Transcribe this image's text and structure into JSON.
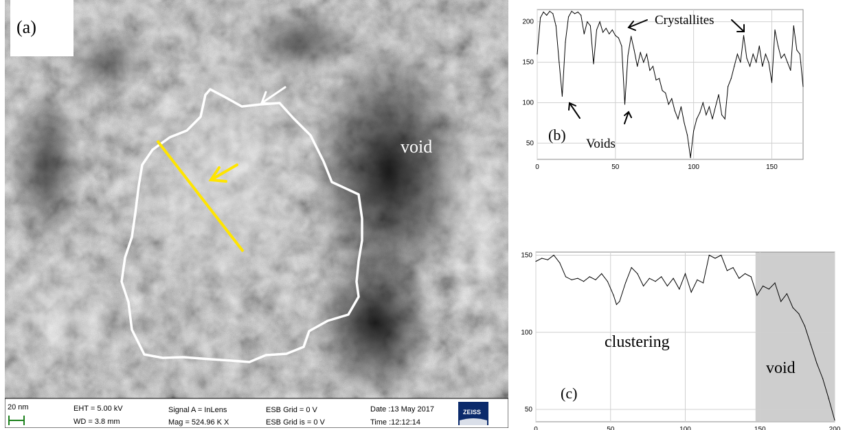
{
  "panel_a": {
    "label": "(a)",
    "void_label": "void",
    "info_bar": {
      "scale": "20 nm",
      "eht": "EHT =  5.00 kV",
      "wd": "WD =  3.8 mm",
      "signal": "Signal A = InLens",
      "mag": "Mag =  524.96 K X",
      "esb_grid": "ESB Grid =      0 V",
      "esb_grid_is": "ESB Grid is =     0 V",
      "date": "Date :13 May 2017",
      "time": "Time :12:12:14",
      "logo": "ZEISS"
    }
  },
  "chart_data": [
    {
      "type": "line",
      "panel": "(b)",
      "xlim": [
        0,
        170
      ],
      "ylim": [
        30,
        215
      ],
      "xticks": [
        0,
        50,
        100,
        150
      ],
      "yticks": [
        50,
        100,
        150,
        200
      ],
      "annotations": [
        "Crystallites",
        "Voids"
      ],
      "x": [
        0,
        2,
        4,
        6,
        8,
        10,
        12,
        14,
        16,
        18,
        20,
        22,
        24,
        26,
        28,
        30,
        32,
        34,
        36,
        38,
        40,
        42,
        44,
        46,
        48,
        50,
        52,
        54,
        56,
        58,
        60,
        62,
        64,
        66,
        68,
        70,
        72,
        74,
        76,
        78,
        80,
        82,
        84,
        86,
        88,
        90,
        92,
        94,
        96,
        98,
        100,
        102,
        104,
        106,
        108,
        110,
        112,
        114,
        116,
        118,
        120,
        122,
        124,
        126,
        128,
        130,
        132,
        134,
        136,
        138,
        140,
        142,
        144,
        146,
        148,
        150,
        152,
        154,
        156,
        158,
        160,
        162,
        164,
        166,
        168,
        170
      ],
      "values": [
        160,
        205,
        212,
        208,
        213,
        210,
        195,
        150,
        108,
        175,
        206,
        213,
        210,
        212,
        208,
        185,
        200,
        195,
        148,
        190,
        200,
        187,
        192,
        185,
        190,
        183,
        180,
        170,
        98,
        158,
        182,
        165,
        145,
        162,
        150,
        160,
        140,
        145,
        128,
        130,
        115,
        112,
        98,
        105,
        90,
        80,
        95,
        75,
        60,
        32,
        65,
        80,
        88,
        100,
        85,
        95,
        80,
        95,
        110,
        85,
        80,
        120,
        130,
        145,
        160,
        150,
        183,
        155,
        145,
        160,
        150,
        170,
        145,
        160,
        150,
        125,
        190,
        170,
        155,
        160,
        150,
        140,
        195,
        165,
        160,
        120
      ]
    },
    {
      "type": "line",
      "panel": "(c)",
      "xlim": [
        0,
        200
      ],
      "ylim": [
        42,
        152
      ],
      "xticks": [
        0,
        50,
        100,
        150,
        200
      ],
      "yticks": [
        50,
        100,
        150
      ],
      "annotations": [
        "clustering",
        "void"
      ],
      "x": [
        0,
        4,
        8,
        12,
        16,
        20,
        24,
        28,
        32,
        36,
        40,
        44,
        48,
        52,
        54,
        56,
        60,
        64,
        68,
        72,
        76,
        80,
        84,
        88,
        92,
        96,
        100,
        104,
        108,
        112,
        116,
        120,
        124,
        128,
        132,
        136,
        140,
        144,
        148,
        152,
        156,
        160,
        164,
        168,
        172,
        176,
        180,
        184,
        188,
        192,
        196,
        200
      ],
      "values": [
        146,
        148,
        147,
        150,
        145,
        136,
        134,
        135,
        133,
        136,
        134,
        138,
        133,
        124,
        118,
        120,
        132,
        142,
        138,
        130,
        135,
        133,
        136,
        130,
        135,
        128,
        138,
        126,
        134,
        132,
        150,
        148,
        150,
        140,
        142,
        135,
        138,
        136,
        124,
        130,
        128,
        132,
        120,
        125,
        116,
        112,
        104,
        92,
        80,
        70,
        57,
        43
      ]
    }
  ]
}
